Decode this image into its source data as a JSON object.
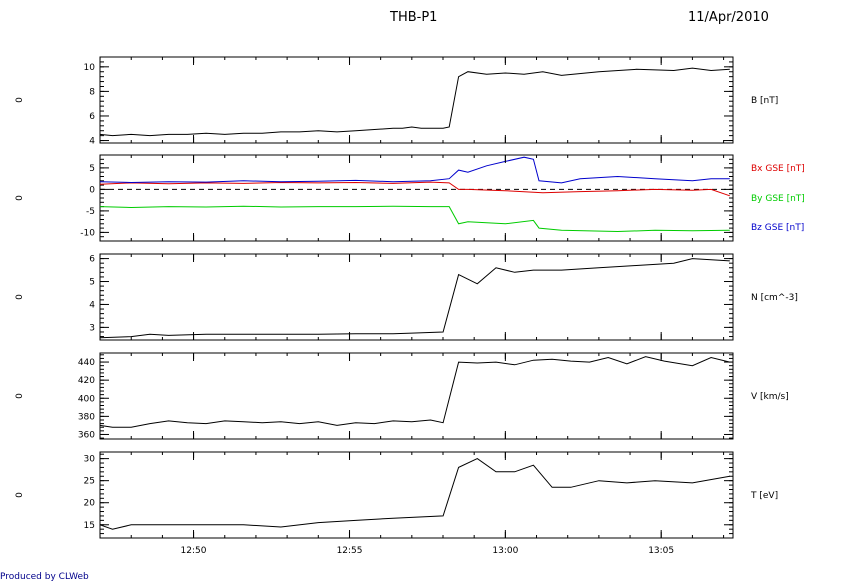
{
  "title": "THB-P1",
  "date": "11/Apr/2010",
  "credit": "Produced by CLWeb",
  "chart_data": [
    {
      "type": "line",
      "ylabel": "B [nT]",
      "ylim": [
        3.8,
        10.8
      ],
      "yticks": [
        4,
        6,
        8,
        10
      ],
      "side_label": "0",
      "series": [
        {
          "color": "#000000",
          "x": [
            12.7833,
            12.79,
            12.8,
            12.81,
            12.82,
            12.83,
            12.84,
            12.85,
            12.86,
            12.87,
            12.88,
            12.89,
            12.9,
            12.91,
            12.92,
            12.93,
            12.94,
            12.945,
            12.95,
            12.955,
            12.96,
            12.9667,
            12.97,
            12.975,
            12.98,
            12.99,
            13.0,
            13.01,
            13.02,
            13.03,
            13.05,
            13.07,
            13.09,
            13.1,
            13.11,
            13.12
          ],
          "y": [
            4.5,
            4.4,
            4.5,
            4.4,
            4.5,
            4.5,
            4.6,
            4.5,
            4.6,
            4.6,
            4.7,
            4.7,
            4.8,
            4.7,
            4.8,
            4.9,
            5.0,
            5.0,
            5.1,
            5.0,
            5.0,
            5.0,
            5.1,
            9.2,
            9.6,
            9.4,
            9.5,
            9.4,
            9.6,
            9.3,
            9.6,
            9.8,
            9.7,
            9.9,
            9.7,
            9.8
          ]
        }
      ]
    },
    {
      "type": "line",
      "ylim": [
        -12,
        8
      ],
      "yticks": [
        -10,
        -5,
        0,
        5
      ],
      "side_label": "0",
      "zero_line": true,
      "series": [
        {
          "name": "Bx GSE [nT]",
          "color": "#dd0000",
          "x": [
            12.7833,
            12.8,
            12.82,
            12.84,
            12.86,
            12.88,
            12.9,
            12.92,
            12.94,
            12.96,
            12.97,
            12.975,
            12.98,
            13.0,
            13.02,
            13.04,
            13.06,
            13.08,
            13.1,
            13.11,
            13.12
          ],
          "y": [
            1.2,
            1.5,
            1.3,
            1.5,
            1.4,
            1.6,
            1.5,
            1.6,
            1.4,
            1.7,
            1.5,
            0.0,
            0.0,
            -0.3,
            -0.8,
            -0.5,
            -0.3,
            0.0,
            -0.2,
            0.0,
            -1.5
          ]
        },
        {
          "name": "By GSE [nT]",
          "color": "#00cc00",
          "x": [
            12.7833,
            12.8,
            12.82,
            12.84,
            12.86,
            12.88,
            12.9,
            12.92,
            12.94,
            12.96,
            12.97,
            12.975,
            12.98,
            13.0,
            13.015,
            13.018,
            13.03,
            13.06,
            13.08,
            13.1,
            13.12
          ],
          "y": [
            -4.0,
            -4.2,
            -4.0,
            -4.1,
            -3.9,
            -4.1,
            -4.0,
            -4.0,
            -3.9,
            -4.0,
            -4.0,
            -8.0,
            -7.5,
            -8.0,
            -7.2,
            -9.0,
            -9.5,
            -9.8,
            -9.5,
            -9.6,
            -9.5
          ]
        },
        {
          "name": "Bz GSE [nT]",
          "color": "#0000cc",
          "x": [
            12.7833,
            12.8,
            12.82,
            12.84,
            12.86,
            12.88,
            12.9,
            12.92,
            12.94,
            12.96,
            12.97,
            12.975,
            12.98,
            12.99,
            13.0,
            13.01,
            13.015,
            13.018,
            13.03,
            13.04,
            13.06,
            13.08,
            13.1,
            13.11,
            13.12
          ],
          "y": [
            1.8,
            1.6,
            1.8,
            1.7,
            2.0,
            1.8,
            1.9,
            2.1,
            1.8,
            2.0,
            2.5,
            4.5,
            4.0,
            5.5,
            6.5,
            7.5,
            7.0,
            2.0,
            1.5,
            2.5,
            3.0,
            2.5,
            2.0,
            2.5,
            2.5
          ]
        }
      ]
    },
    {
      "type": "line",
      "ylabel": "N [cm^-3]",
      "ylim": [
        2.45,
        6.2
      ],
      "yticks": [
        3,
        4,
        5,
        6
      ],
      "side_label": "0",
      "series": [
        {
          "color": "#000000",
          "x": [
            12.7833,
            12.8,
            12.81,
            12.82,
            12.84,
            12.86,
            12.88,
            12.9,
            12.92,
            12.94,
            12.95,
            12.9667,
            12.975,
            12.985,
            12.995,
            13.005,
            13.015,
            13.03,
            13.05,
            13.07,
            13.09,
            13.1,
            13.12
          ],
          "y": [
            2.55,
            2.6,
            2.7,
            2.65,
            2.7,
            2.7,
            2.7,
            2.7,
            2.72,
            2.72,
            2.75,
            2.8,
            5.3,
            4.9,
            5.6,
            5.4,
            5.5,
            5.5,
            5.6,
            5.7,
            5.8,
            6.0,
            5.9
          ]
        }
      ]
    },
    {
      "type": "line",
      "ylabel": "V [km/s]",
      "ylim": [
        355,
        450
      ],
      "yticks": [
        360,
        380,
        400,
        420,
        440
      ],
      "side_label": "0",
      "series": [
        {
          "color": "#000000",
          "x": [
            12.7833,
            12.79,
            12.8,
            12.81,
            12.82,
            12.83,
            12.84,
            12.85,
            12.86,
            12.87,
            12.88,
            12.89,
            12.9,
            12.91,
            12.92,
            12.93,
            12.94,
            12.95,
            12.96,
            12.9667,
            12.975,
            12.985,
            12.995,
            13.005,
            13.015,
            13.025,
            13.035,
            13.045,
            13.055,
            13.065,
            13.075,
            13.085,
            13.1,
            13.11,
            13.12
          ],
          "y": [
            370,
            368,
            368,
            372,
            375,
            373,
            372,
            375,
            374,
            373,
            374,
            372,
            374,
            370,
            373,
            372,
            375,
            374,
            376,
            373,
            440,
            439,
            440,
            437,
            442,
            443,
            441,
            440,
            445,
            438,
            446,
            441,
            436,
            445,
            440
          ]
        }
      ]
    },
    {
      "type": "line",
      "ylabel": "T [eV]",
      "ylim": [
        12,
        31.5
      ],
      "yticks": [
        15,
        20,
        25,
        30
      ],
      "side_label": "0",
      "series": [
        {
          "color": "#000000",
          "x": [
            12.7833,
            12.79,
            12.8,
            12.82,
            12.84,
            12.86,
            12.88,
            12.9,
            12.92,
            12.94,
            12.9667,
            12.975,
            12.985,
            12.995,
            13.005,
            13.015,
            13.025,
            13.035,
            13.05,
            13.065,
            13.08,
            13.1,
            13.12
          ],
          "y": [
            15,
            14,
            15,
            15,
            15,
            15,
            14.5,
            15.5,
            16,
            16.5,
            17,
            28,
            30,
            27,
            27,
            28.5,
            23.5,
            23.5,
            25,
            24.5,
            25,
            24.5,
            26
          ]
        }
      ]
    }
  ],
  "xaxis": {
    "xlim": [
      12.7833,
      13.1217
    ],
    "ticks": [
      12.8333,
      12.9167,
      13.0,
      13.0833
    ],
    "tick_labels": [
      "12:50",
      "12:55",
      "13:00",
      "13:05"
    ]
  }
}
